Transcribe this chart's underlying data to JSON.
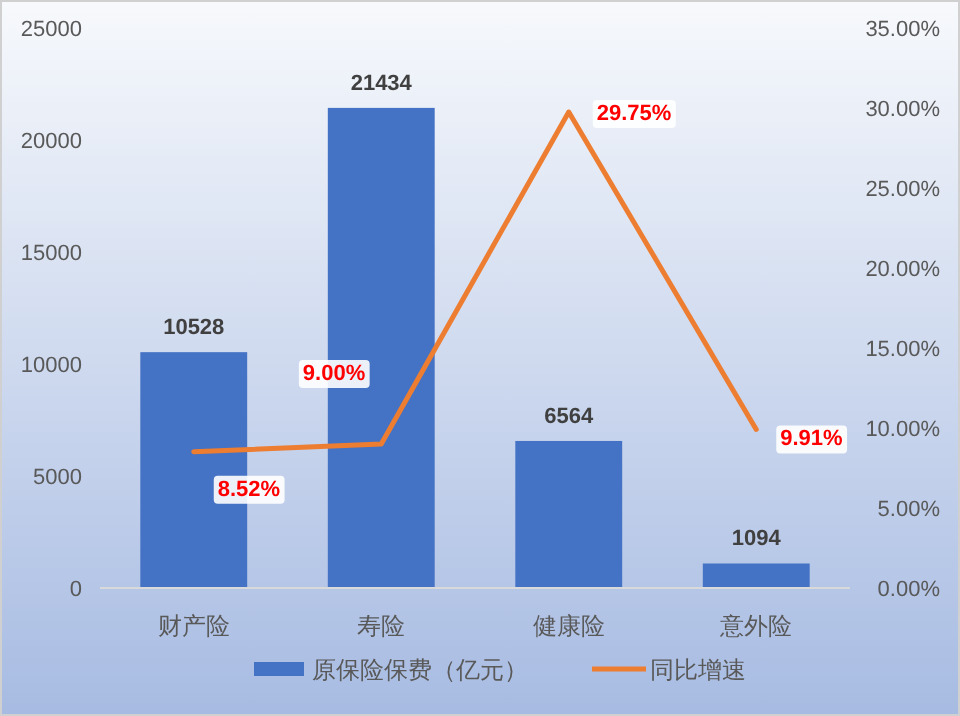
{
  "chart_data": {
    "type": "bar",
    "categories": [
      "财产险",
      "寿险",
      "健康险",
      "意外险"
    ],
    "series": [
      {
        "name": "原保险保费（亿元）",
        "color": "#4472c4",
        "values": [
          10528,
          21434,
          6564,
          1094
        ],
        "value_labels": [
          "10528",
          "21434",
          "6564",
          "1094"
        ]
      },
      {
        "name": "同比增速",
        "type": "line",
        "axis": "y2",
        "color": "#ed7d31",
        "values": [
          8.52,
          9.0,
          29.75,
          9.91
        ],
        "value_labels": [
          "8.52%",
          "9.00%",
          "29.75%",
          "9.91%"
        ]
      }
    ],
    "ylim": [
      0,
      25000
    ],
    "yticks": [
      0,
      5000,
      10000,
      15000,
      20000,
      25000
    ],
    "y2lim": [
      0,
      35
    ],
    "y2ticks": [
      {
        "value": 0,
        "label": "0.00%"
      },
      {
        "value": 5,
        "label": "5.00%"
      },
      {
        "value": 10,
        "label": "10.00%"
      },
      {
        "value": 15,
        "label": "15.00%"
      },
      {
        "value": 20,
        "label": "20.00%"
      },
      {
        "value": 25,
        "label": "25.00%"
      },
      {
        "value": 30,
        "label": "30.00%"
      },
      {
        "value": 35,
        "label": "35.00%"
      }
    ],
    "legend": "bottom",
    "grid": false,
    "marker": "none",
    "line_style": "solid"
  }
}
